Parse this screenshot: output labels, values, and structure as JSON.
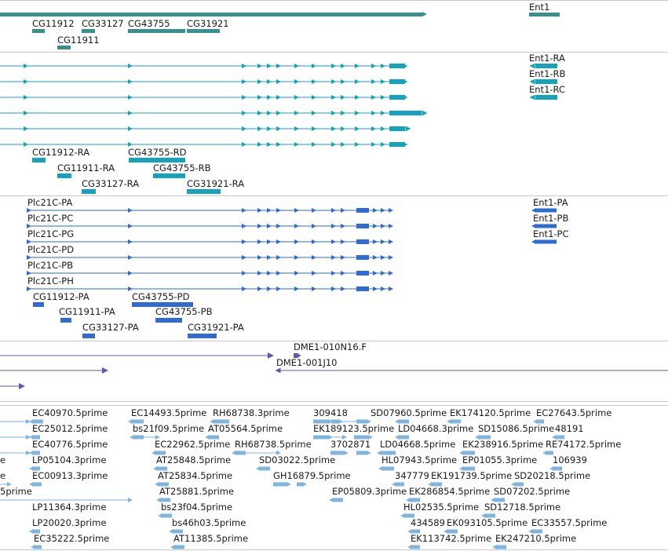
{
  "colors": {
    "gene": "#3a8f8f",
    "transcript": "#13a3bf",
    "protein": "#2f6ad6",
    "clone": "#6a54a8",
    "est": "#7fb4dc",
    "separator": "#c8c8c8"
  },
  "gene_track": {
    "labels": {
      "ent1": "Ent1",
      "cg11912": "CG11912",
      "cg33127": "CG33127",
      "cg43755": "CG43755",
      "cg31921": "CG31921",
      "cg11911": "CG11911"
    }
  },
  "transcript_track": {
    "labels": {
      "ent1_ra": "Ent1-RA",
      "ent1_rb": "Ent1-RB",
      "ent1_rc": "Ent1-RC",
      "cg11912_ra": "CG11912-RA",
      "cg43755_rd": "CG43755-RD",
      "cg11911_ra": "CG11911-RA",
      "cg43755_rb": "CG43755-RB",
      "cg33127_ra": "CG33127-RA",
      "cg31921_ra": "CG31921-RA"
    }
  },
  "protein_track": {
    "labels": {
      "plc_pa": "Plc21C-PA",
      "plc_pc": "Plc21C-PC",
      "plc_pg": "Plc21C-PG",
      "plc_pd": "Plc21C-PD",
      "plc_pb": "Plc21C-PB",
      "plc_ph": "Plc21C-PH",
      "ent1_pa": "Ent1-PA",
      "ent1_pb": "Ent1-PB",
      "ent1_pc": "Ent1-PC",
      "cg11912_pa": "CG11912-PA",
      "cg43755_pd": "CG43755-PD",
      "cg11911_pa": "CG11911-PA",
      "cg43755_pb": "CG43755-PB",
      "cg33127_pa": "CG33127-PA",
      "cg31921_pa": "CG31921-PA"
    }
  },
  "clone_track": {
    "labels": {
      "dme1_010n16": "DME1-010N16.F",
      "dme1_001j10": "DME1-001J10"
    }
  },
  "est_track": {
    "labels": [
      "EC40970.5prime",
      "EC14493.5prime",
      "RH68738.3prime",
      "309418",
      "SD07960.5prime",
      "EK174120.5prime",
      "EC27643.5prime",
      "EC25012.5prime",
      "bs21f09.5prime",
      "AT05564.5prime",
      "EK189123.5prime",
      "LD04668.3prime",
      "SD15086.5prime",
      "48191",
      "EC40776.5prime",
      "EC22962.5prime",
      "RH68738.5prime",
      "3702871",
      "LD04668.5prime",
      "EK238916.5prime",
      "RE74172.5prime",
      "LP05104.3prime",
      "AT25848.5prime",
      "SD03022.5prime",
      "HL07943.5prime",
      "EP01055.3prime",
      "106939",
      "EC00913.3prime",
      "AT25834.5prime",
      "GH16879.5prime",
      "347779",
      "EK191739.5prime",
      "SD20218.5prime",
      "5prime",
      "AT25881.5prime",
      "EP05809.3prime",
      "EK286854.5prime",
      "SD07202.5prime",
      "LP11364.3prime",
      "bs23f04.5prime",
      "HL02535.5prime",
      "SD12718.5prime",
      "LP20020.3prime",
      "bs46h03.5prime",
      "434589",
      "EK093105.5prime",
      "EC33557.5prime",
      "EC35222.5prime",
      "AT11385.5prime",
      "EK113742.5prime",
      "EK247210.5prime",
      "e",
      "e"
    ]
  }
}
